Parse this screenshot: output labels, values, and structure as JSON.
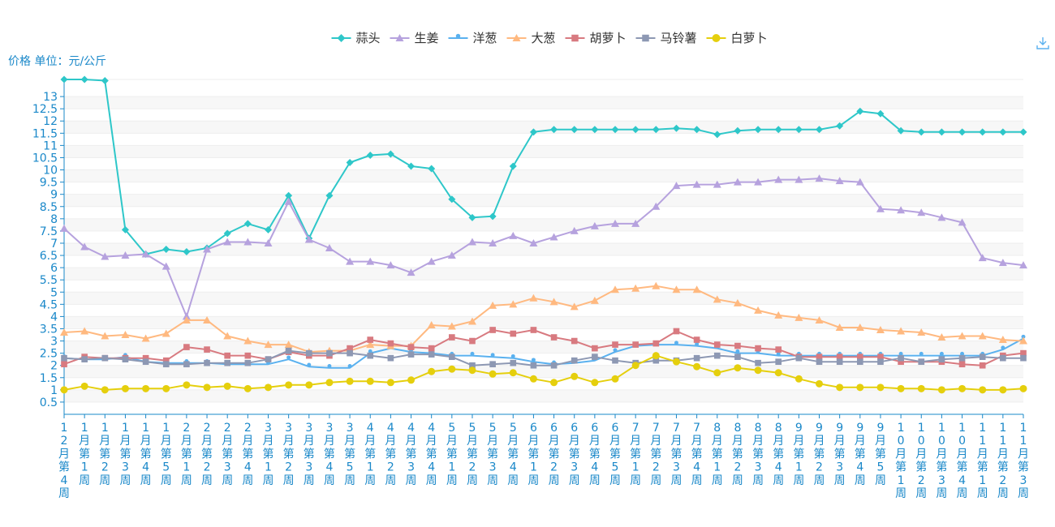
{
  "chart_data": {
    "type": "line",
    "unit_label": "价格 单位：元/公斤",
    "y_ticks": [
      "0.5",
      "1",
      "1.5",
      "2",
      "2.5",
      "3",
      "3.5",
      "4",
      "4.5",
      "5",
      "5.5",
      "6",
      "6.5",
      "7",
      "7.5",
      "8",
      "8.5",
      "9",
      "9.5",
      "10",
      "10.5",
      "11",
      "11.5",
      "12",
      "12.5",
      "13"
    ],
    "ylim": [
      0,
      13.7
    ],
    "grid": true,
    "legend_position": "top-center",
    "categories": [
      "12月第4周",
      "1月第1周",
      "1月第2周",
      "1月第3周",
      "1月第4周",
      "1月第5周",
      "2月第1周",
      "2月第2周",
      "2月第3周",
      "2月第4周",
      "3月第1周",
      "3月第2周",
      "3月第3周",
      "3月第4周",
      "3月第5周",
      "4月第1周",
      "4月第2周",
      "4月第3周",
      "4月第4周",
      "5月第1周",
      "5月第2周",
      "5月第3周",
      "5月第4周",
      "6月第1周",
      "6月第2周",
      "6月第3周",
      "6月第4周",
      "6月第5周",
      "7月第1周",
      "7月第2周",
      "7月第3周",
      "7月第4周",
      "8月第1周",
      "8月第2周",
      "8月第3周",
      "8月第4周",
      "9月第1周",
      "9月第2周",
      "9月第3周",
      "9月第4周",
      "9月第5周",
      "10月第1周",
      "10月第2周",
      "10月第3周",
      "10月第4周",
      "11月第1周",
      "11月第2周",
      "11月第3周"
    ],
    "series": [
      {
        "name": "蒜头",
        "color": "#2ec7c9",
        "symbol": "diamond",
        "values": [
          13.7,
          13.7,
          13.65,
          7.55,
          6.55,
          6.75,
          6.65,
          6.8,
          7.4,
          7.8,
          7.55,
          8.95,
          7.2,
          8.95,
          10.3,
          10.6,
          10.65,
          10.15,
          10.05,
          8.8,
          8.05,
          8.1,
          10.15,
          11.55,
          11.65,
          11.65,
          11.65,
          11.65,
          11.65,
          11.65,
          11.7,
          11.65,
          11.45,
          11.6,
          11.65,
          11.65,
          11.65,
          11.65,
          11.8,
          12.4,
          12.3,
          11.6,
          11.55,
          11.55,
          11.55,
          11.55,
          11.55,
          11.55
        ]
      },
      {
        "name": "生姜",
        "color": "#b6a2de",
        "symbol": "triangle",
        "values": [
          7.6,
          6.85,
          6.45,
          6.5,
          6.55,
          6.05,
          4.0,
          6.75,
          7.05,
          7.05,
          7.0,
          8.7,
          7.15,
          6.8,
          6.25,
          6.25,
          6.1,
          5.8,
          6.25,
          6.5,
          7.05,
          7.0,
          7.3,
          7.0,
          7.25,
          7.5,
          7.7,
          7.8,
          7.8,
          8.5,
          9.35,
          9.4,
          9.4,
          9.5,
          9.5,
          9.6,
          9.6,
          9.65,
          9.55,
          9.5,
          8.4,
          8.35,
          8.25,
          8.05,
          7.85,
          6.4,
          6.2,
          6.1
        ]
      },
      {
        "name": "洋葱",
        "color": "#5ab1ef",
        "symbol": "pin",
        "values": [
          2.3,
          2.25,
          2.25,
          2.35,
          2.15,
          2.1,
          2.1,
          2.1,
          2.05,
          2.05,
          2.05,
          2.25,
          1.95,
          1.9,
          1.9,
          2.5,
          2.7,
          2.55,
          2.5,
          2.4,
          2.4,
          2.35,
          2.3,
          2.15,
          2.05,
          2.1,
          2.2,
          2.55,
          2.8,
          2.85,
          2.85,
          2.8,
          2.7,
          2.5,
          2.5,
          2.4,
          2.4,
          2.4,
          2.4,
          2.4,
          2.4,
          2.4,
          2.4,
          2.4,
          2.4,
          2.4,
          2.65,
          3.1
        ]
      },
      {
        "name": "大葱",
        "color": "#ffb980",
        "symbol": "triangle",
        "values": [
          3.35,
          3.4,
          3.2,
          3.25,
          3.1,
          3.3,
          3.85,
          3.85,
          3.2,
          3.0,
          2.85,
          2.85,
          2.55,
          2.6,
          2.6,
          2.85,
          2.8,
          2.8,
          3.65,
          3.6,
          3.8,
          4.45,
          4.5,
          4.75,
          4.6,
          4.4,
          4.65,
          5.1,
          5.15,
          5.25,
          5.1,
          5.1,
          4.7,
          4.55,
          4.25,
          4.05,
          3.95,
          3.85,
          3.55,
          3.55,
          3.45,
          3.4,
          3.35,
          3.15,
          3.2,
          3.2,
          3.05,
          3.0
        ]
      },
      {
        "name": "胡萝卜",
        "color": "#d87a80",
        "symbol": "square",
        "values": [
          2.05,
          2.35,
          2.3,
          2.3,
          2.3,
          2.2,
          2.75,
          2.65,
          2.4,
          2.4,
          2.25,
          2.55,
          2.4,
          2.4,
          2.7,
          3.05,
          2.9,
          2.75,
          2.7,
          3.15,
          3.0,
          3.45,
          3.3,
          3.45,
          3.15,
          3.0,
          2.7,
          2.85,
          2.85,
          2.9,
          3.4,
          3.05,
          2.85,
          2.8,
          2.7,
          2.65,
          2.35,
          2.35,
          2.35,
          2.35,
          2.35,
          2.15,
          2.15,
          2.15,
          2.05,
          2.0,
          2.4,
          2.5
        ]
      },
      {
        "name": "马铃薯",
        "color": "#8d98b3",
        "symbol": "square",
        "values": [
          2.3,
          2.25,
          2.3,
          2.25,
          2.15,
          2.05,
          2.05,
          2.1,
          2.1,
          2.1,
          2.25,
          2.6,
          2.5,
          2.5,
          2.5,
          2.4,
          2.3,
          2.45,
          2.45,
          2.35,
          2.0,
          2.05,
          2.1,
          2.0,
          2.0,
          2.2,
          2.35,
          2.2,
          2.1,
          2.2,
          2.2,
          2.3,
          2.4,
          2.35,
          2.1,
          2.15,
          2.3,
          2.15,
          2.15,
          2.15,
          2.15,
          2.3,
          2.15,
          2.25,
          2.3,
          2.35,
          2.3,
          2.3
        ]
      },
      {
        "name": "白萝卜",
        "color": "#e5cf0d",
        "symbol": "circle",
        "values": [
          1.0,
          1.15,
          1.0,
          1.05,
          1.05,
          1.05,
          1.2,
          1.1,
          1.15,
          1.05,
          1.1,
          1.2,
          1.2,
          1.3,
          1.35,
          1.35,
          1.3,
          1.4,
          1.75,
          1.85,
          1.8,
          1.65,
          1.7,
          1.45,
          1.3,
          1.55,
          1.3,
          1.45,
          2.0,
          2.4,
          2.15,
          1.95,
          1.7,
          1.9,
          1.8,
          1.7,
          1.45,
          1.25,
          1.1,
          1.1,
          1.1,
          1.05,
          1.05,
          1.0,
          1.05,
          1.0,
          1.0,
          1.05
        ]
      }
    ]
  },
  "toolbar": {
    "download_icon": "download-icon"
  }
}
